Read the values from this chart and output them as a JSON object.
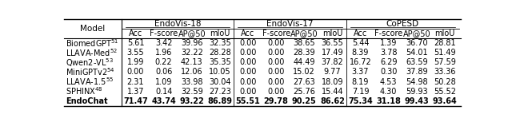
{
  "col_groups": [
    "EndoVis-18",
    "EndoVis-17",
    "CoPESD"
  ],
  "sub_headers": [
    "Acc",
    "F-score",
    "AP@50",
    "mIoU"
  ],
  "models": [
    "BiomedGPT",
    "LLAVA-Med",
    "Qwen2-VL",
    "MiniGPTv2",
    "LLAVA-1.5",
    "SPHINX",
    "EndoChat"
  ],
  "superscripts": [
    "51",
    "52",
    "53",
    "54",
    "55",
    "48",
    ""
  ],
  "data": [
    [
      5.61,
      3.42,
      39.96,
      32.35,
      0.0,
      0.0,
      38.65,
      36.55,
      5.44,
      1.39,
      36.7,
      28.81
    ],
    [
      3.55,
      1.96,
      32.22,
      28.28,
      0.0,
      0.0,
      28.39,
      17.49,
      8.39,
      3.78,
      54.01,
      51.49
    ],
    [
      1.99,
      0.22,
      42.13,
      35.35,
      0.0,
      0.0,
      44.49,
      37.82,
      16.72,
      6.29,
      63.59,
      57.59
    ],
    [
      0.0,
      0.06,
      12.06,
      10.05,
      0.0,
      0.0,
      15.02,
      9.77,
      3.37,
      0.3,
      37.89,
      33.36
    ],
    [
      2.31,
      1.09,
      33.98,
      30.04,
      0.0,
      0.0,
      27.63,
      18.09,
      8.19,
      4.53,
      54.98,
      50.28
    ],
    [
      1.37,
      0.14,
      32.59,
      27.23,
      0.0,
      0.0,
      25.76,
      15.44,
      7.19,
      4.3,
      59.93,
      55.52
    ],
    [
      71.47,
      43.74,
      93.22,
      86.89,
      55.51,
      29.78,
      90.25,
      86.62,
      75.34,
      31.18,
      99.43,
      93.64
    ]
  ],
  "background_color": "#ffffff",
  "font_size": 7.0,
  "header_font_size": 7.5
}
